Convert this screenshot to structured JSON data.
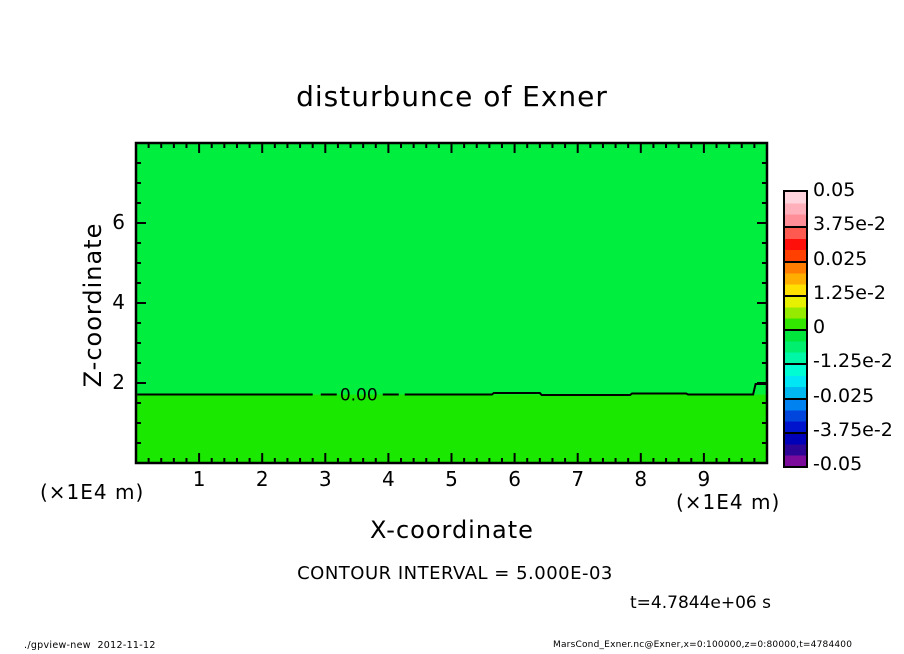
{
  "title": "disturbunce of Exner",
  "annotations": {
    "contour_interval": "CONTOUR INTERVAL = 5.000E-03",
    "time_label": "t=4.7844e+06 s",
    "x_units": "(×1E4 m)",
    "y_units": "(×1E4 m)"
  },
  "footer": {
    "left": "./gpview-new  2012-11-12",
    "right": "MarsCond_Exner.nc@Exner,x=0:100000,z=0:80000,t=4784400"
  },
  "chart_data": {
    "type": "heatmap",
    "title": "disturbunce of Exner",
    "xlabel": "X-coordinate",
    "ylabel": "Z-coordinate",
    "x_units": "(×1E4 m)",
    "y_units": "(×1E4 m)",
    "xlim": [
      0,
      10
    ],
    "ylim": [
      0,
      8
    ],
    "x_major_ticks": [
      1,
      2,
      3,
      4,
      5,
      6,
      7,
      8,
      9
    ],
    "x_minor_tick_step": 0.2,
    "y_major_ticks": [
      2,
      4,
      6
    ],
    "y_minor_tick_step": 0.5,
    "contour_interval": 0.005,
    "field_description": "Exner disturbance near zero everywhere; one 0.00 contour line crossing the full x range at z about 1.7 (x1E4 m), rising to about 2.0 at the right edge",
    "fill_colors": {
      "above_contour": "#00ee3e",
      "below_contour": "#1ae800"
    },
    "zero_contour": {
      "label": "0.00",
      "label_x": 3.53,
      "points": [
        [
          0.02,
          1.712
        ],
        [
          5.64,
          1.712
        ],
        [
          5.67,
          1.75
        ],
        [
          6.4,
          1.75
        ],
        [
          6.43,
          1.7
        ],
        [
          7.83,
          1.7
        ],
        [
          7.86,
          1.738
        ],
        [
          8.72,
          1.738
        ],
        [
          8.75,
          1.712
        ],
        [
          9.78,
          1.712
        ],
        [
          9.82,
          1.975
        ],
        [
          10.0,
          1.975
        ]
      ]
    },
    "colorbar": {
      "range": [
        -0.05,
        0.05
      ],
      "labels": [
        "0.05",
        "3.75e-2",
        "0.025",
        "1.25e-2",
        "0",
        "-1.25e-2",
        "-0.025",
        "-3.75e-2",
        "-0.05"
      ],
      "cells": [
        [
          "#ffd4dc",
          "#ffb0ba",
          "#ff8e98"
        ],
        [
          "#ff5a50",
          "#ff0f0a",
          "#ff4000"
        ],
        [
          "#ff7d00",
          "#ffae00",
          "#ffe000"
        ],
        [
          "#e6f000",
          "#96ea00",
          "#32e600"
        ],
        [
          "#00e63c",
          "#00ef6e",
          "#00f7a5"
        ],
        [
          "#00fcd2",
          "#00e6f5",
          "#00b8f0"
        ],
        [
          "#0082f0",
          "#0046dc",
          "#0014cd"
        ],
        [
          "#0000b9",
          "#2d0596",
          "#7b0c9b"
        ]
      ]
    }
  }
}
